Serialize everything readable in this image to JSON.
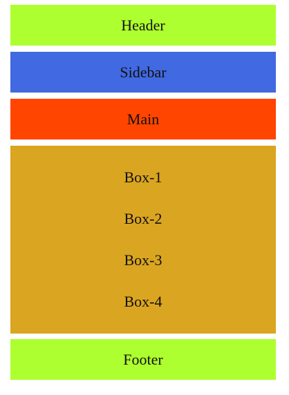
{
  "colors": {
    "header": "#ADFF2F",
    "sidebar": "#4169E1",
    "main": "#FF4500",
    "boxes": "#DAA520",
    "footer": "#ADFF2F"
  },
  "header": {
    "label": "Header"
  },
  "sidebar": {
    "label": "Sidebar"
  },
  "main": {
    "label": "Main"
  },
  "boxes": {
    "items": [
      {
        "label": "Box-1"
      },
      {
        "label": "Box-2"
      },
      {
        "label": "Box-3"
      },
      {
        "label": "Box-4"
      }
    ]
  },
  "footer": {
    "label": "Footer"
  }
}
